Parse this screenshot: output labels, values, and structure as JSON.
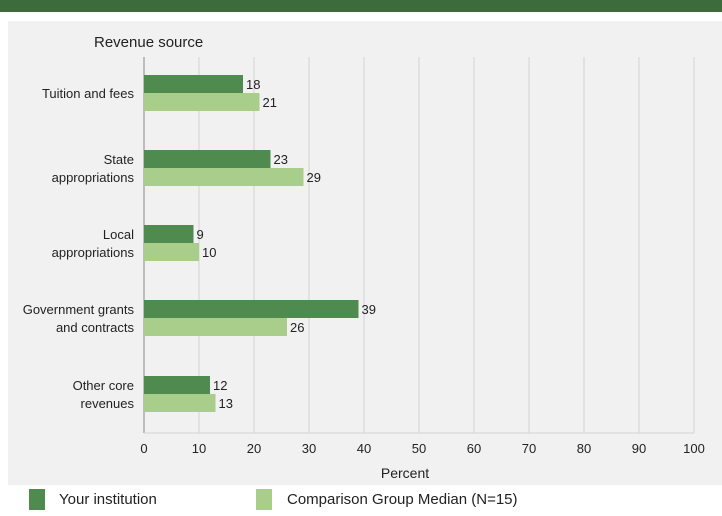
{
  "chart_data": {
    "type": "bar",
    "orientation": "horizontal",
    "title": "Revenue source",
    "xlabel": "Percent",
    "xlim": [
      0,
      100
    ],
    "xticks": [
      0,
      10,
      20,
      30,
      40,
      50,
      60,
      70,
      80,
      90,
      100
    ],
    "grid": true,
    "categories": [
      [
        "Tuition and fees"
      ],
      [
        "State",
        "appropriations"
      ],
      [
        "Local",
        "appropriations"
      ],
      [
        "Government grants",
        "and contracts"
      ],
      [
        "Other core",
        "revenues"
      ]
    ],
    "series": [
      {
        "name": "Your institution",
        "color": "#4f8a4f",
        "values": [
          18,
          23,
          9,
          39,
          12
        ]
      },
      {
        "name": "Comparison Group Median (N=15)",
        "color": "#a9cd8a",
        "values": [
          21,
          29,
          10,
          26,
          13
        ]
      }
    ],
    "legend_position": "bottom"
  },
  "colors": {
    "top_bar": "#3c6b3c",
    "panel": "#f1f1f1",
    "grid": "#d4d4d4",
    "axis": "#888888"
  }
}
